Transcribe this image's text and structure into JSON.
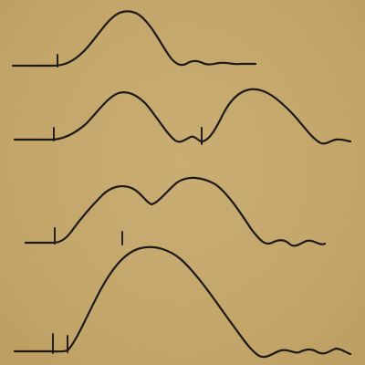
{
  "figure": {
    "background_color": "#c6a96c",
    "ink_color": "#1c1a17",
    "traces": [
      {
        "id": "trace-1",
        "peaks": 1,
        "markers": 1
      },
      {
        "id": "trace-2",
        "peaks": 2,
        "markers": 2
      },
      {
        "id": "trace-3",
        "peaks": 2,
        "markers": 2
      },
      {
        "id": "trace-4",
        "peaks": 1,
        "markers": 2
      }
    ]
  }
}
